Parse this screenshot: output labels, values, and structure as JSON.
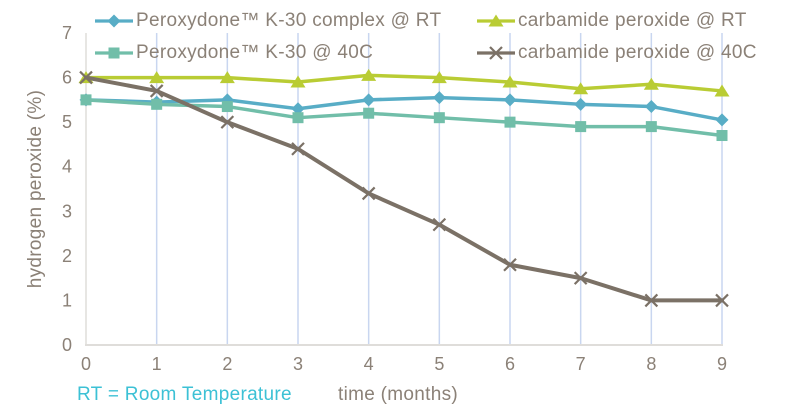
{
  "chart_data": {
    "type": "line",
    "title": "",
    "xlabel": "time (months)",
    "ylabel": "hydrogen peroxide (%)",
    "x": [
      0,
      1,
      2,
      3,
      4,
      5,
      6,
      7,
      8,
      9
    ],
    "xlim": [
      0,
      9
    ],
    "ylim": [
      0,
      7
    ],
    "yticks": [
      0,
      1,
      2,
      3,
      4,
      5,
      6,
      7
    ],
    "grid": "vertical-gridlines-only",
    "legend_position": "top-two-columns",
    "series": [
      {
        "name": "Peroxydone™ K-30 complex @ RT",
        "marker": "diamond",
        "color": "#58adc6",
        "values": [
          5.5,
          5.45,
          5.5,
          5.3,
          5.5,
          5.55,
          5.5,
          5.4,
          5.35,
          5.05
        ]
      },
      {
        "name": "Peroxydone™ K-30 @ 40C",
        "marker": "square",
        "color": "#71bea9",
        "values": [
          5.5,
          5.4,
          5.35,
          5.1,
          5.2,
          5.1,
          5.0,
          4.9,
          4.9,
          4.7
        ]
      },
      {
        "name": "carbamide peroxide @ RT",
        "marker": "triangle",
        "color": "#b9cc34",
        "values": [
          6.0,
          6.0,
          6.0,
          5.9,
          6.05,
          6.0,
          5.9,
          5.75,
          5.85,
          5.7
        ]
      },
      {
        "name": "carbamide peroxide @ 40C",
        "marker": "x",
        "color": "#7b7166",
        "values": [
          6.0,
          5.7,
          5.0,
          4.4,
          3.4,
          2.7,
          1.8,
          1.5,
          1.0,
          1.0
        ]
      }
    ]
  },
  "note": {
    "text": "RT = Room Temperature",
    "color": "#3cc1d5"
  },
  "colors": {
    "text": "#8b8177",
    "gridline": "#c9d6f0",
    "axis_line": "#dfddda"
  }
}
